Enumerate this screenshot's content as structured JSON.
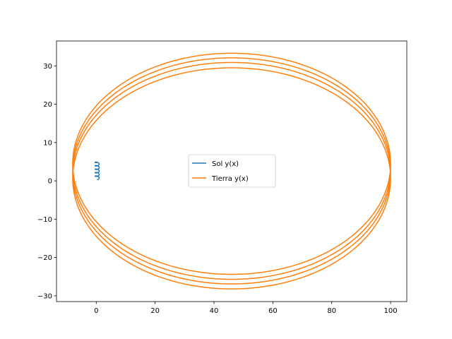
{
  "chart_data": {
    "type": "line",
    "title": "",
    "xlabel": "",
    "ylabel": "",
    "xlim": [
      -13.5,
      105.5
    ],
    "ylim": [
      -31.5,
      36.5
    ],
    "xticks": [
      0,
      20,
      40,
      60,
      80,
      100
    ],
    "yticks": [
      -30,
      -20,
      -10,
      0,
      10,
      20,
      30
    ],
    "xtick_labels": [
      "0",
      "20",
      "40",
      "60",
      "80",
      "100"
    ],
    "ytick_labels": [
      "−30",
      "−20",
      "−10",
      "0",
      "10",
      "20",
      "30"
    ],
    "grid": false,
    "legend_position": "center",
    "series": [
      {
        "name": "Sol y(x)",
        "color": "#1f77b4",
        "shape": "small spiral",
        "center_x": 0.3,
        "x_amplitude": 0.7,
        "y_start": 0.3,
        "y_end": 4.8,
        "turns": 5
      },
      {
        "name": "Tierra y(x)",
        "color": "#ff7f0e",
        "shape": "precessing ellipse orbit",
        "center_x": 46,
        "x_min": -8,
        "x_max": 100,
        "orbits": [
          {
            "y_top": 33.3,
            "y_bottom": -24.4
          },
          {
            "y_top": 32.1,
            "y_bottom": -25.7
          },
          {
            "y_top": 30.9,
            "y_bottom": -26.9
          },
          {
            "y_top": 29.5,
            "y_bottom": -28.2
          }
        ]
      }
    ]
  }
}
